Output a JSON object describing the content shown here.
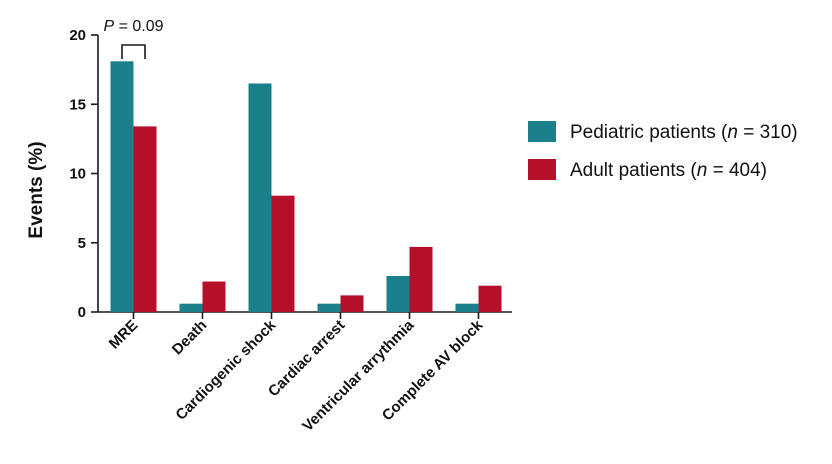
{
  "chart_data": {
    "type": "bar",
    "title": "",
    "ylabel": "Events (%)",
    "xlabel": "",
    "ylim": [
      0,
      20
    ],
    "yticks": [
      0,
      5,
      10,
      15,
      20
    ],
    "categories": [
      "MRE",
      "Death",
      "Cardiogenic shock",
      "Cardiac arrest",
      "Ventricular arrythmia",
      "Complete AV block"
    ],
    "series": [
      {
        "name": "Pediatric patients (n = 310)",
        "label_prefix": "Pediatric patients (",
        "label_n": "n",
        "label_suffix": " = 310)",
        "color": "#1b7f8c",
        "values": [
          18.1,
          0.6,
          16.5,
          0.6,
          2.6,
          0.6
        ]
      },
      {
        "name": "Adult patients (n = 404)",
        "label_prefix": "Adult patients (",
        "label_n": "n",
        "label_suffix": " = 404)",
        "color": "#b5102a",
        "values": [
          13.4,
          2.2,
          8.4,
          1.2,
          4.7,
          1.9
        ]
      }
    ],
    "annotation": {
      "p_symbol": "P",
      "p_text": " = 0.09",
      "category": "MRE"
    },
    "legend_position": "right",
    "grid": false
  }
}
